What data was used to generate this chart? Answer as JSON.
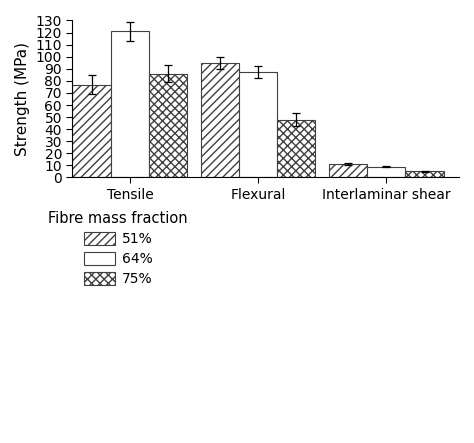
{
  "categories": [
    "Tensile",
    "Flexural",
    "Interlaminar shear"
  ],
  "series": {
    "51%": {
      "values": [
        77,
        95,
        11
      ],
      "errors": [
        8,
        5,
        1
      ],
      "hatch": "////"
    },
    "64%": {
      "values": [
        121,
        87,
        9
      ],
      "errors": [
        8,
        5,
        0.5
      ],
      "hatch": "===="
    },
    "75%": {
      "values": [
        86,
        48,
        5
      ],
      "errors": [
        7,
        5,
        0.5
      ],
      "hatch": "xxxx"
    }
  },
  "series_order": [
    "51%",
    "64%",
    "75%"
  ],
  "ylabel": "Strength (MPa)",
  "ylim": [
    0,
    130
  ],
  "yticks": [
    0,
    10,
    20,
    30,
    40,
    50,
    60,
    70,
    80,
    90,
    100,
    110,
    120,
    130
  ],
  "legend_title": "Fibre mass fraction",
  "bar_width": 0.2,
  "edgecolor": "#404040",
  "facecolor": "white",
  "background_color": "#ffffff",
  "axis_fontsize": 11,
  "tick_fontsize": 10,
  "legend_fontsize": 10
}
